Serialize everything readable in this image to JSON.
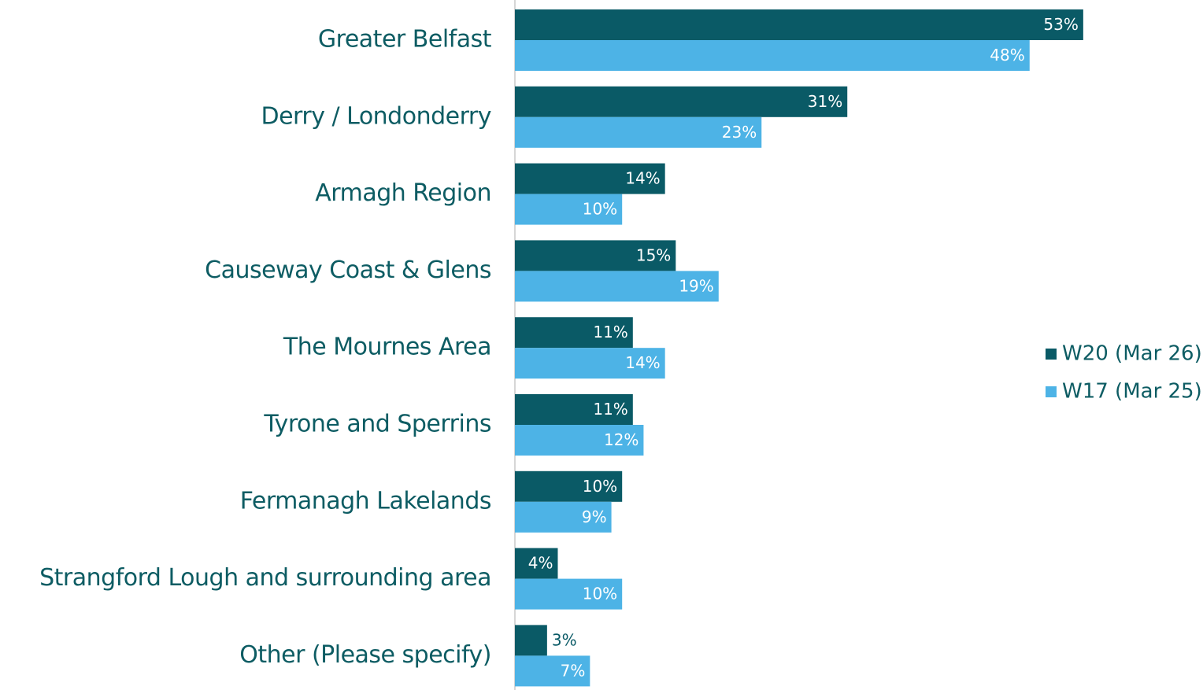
{
  "chart_data": {
    "type": "bar",
    "orientation": "horizontal",
    "categories": [
      "Greater Belfast",
      "Derry / Londonderry",
      "Armagh Region",
      "Causeway Coast & Glens",
      "The Mournes Area",
      "Tyrone and Sperrins",
      "Fermanagh Lakelands",
      "Strangford Lough and surrounding area",
      "Other (Please specify)"
    ],
    "series": [
      {
        "name": "W20 (Mar 26)",
        "color": "#0a5a66",
        "values": [
          53,
          31,
          14,
          15,
          11,
          11,
          10,
          4,
          3
        ],
        "value_labels": [
          "53%",
          "31%",
          "14%",
          "15%",
          "11%",
          "11%",
          "10%",
          "4%",
          "3%"
        ]
      },
      {
        "name": "W17 (Mar 25)",
        "color": "#4db3e6",
        "values": [
          48,
          23,
          10,
          19,
          14,
          12,
          9,
          10,
          7
        ],
        "value_labels": [
          "48%",
          "23%",
          "10%",
          "19%",
          "14%",
          "12%",
          "9%",
          "10%",
          "7%"
        ]
      }
    ],
    "legend": "right"
  }
}
